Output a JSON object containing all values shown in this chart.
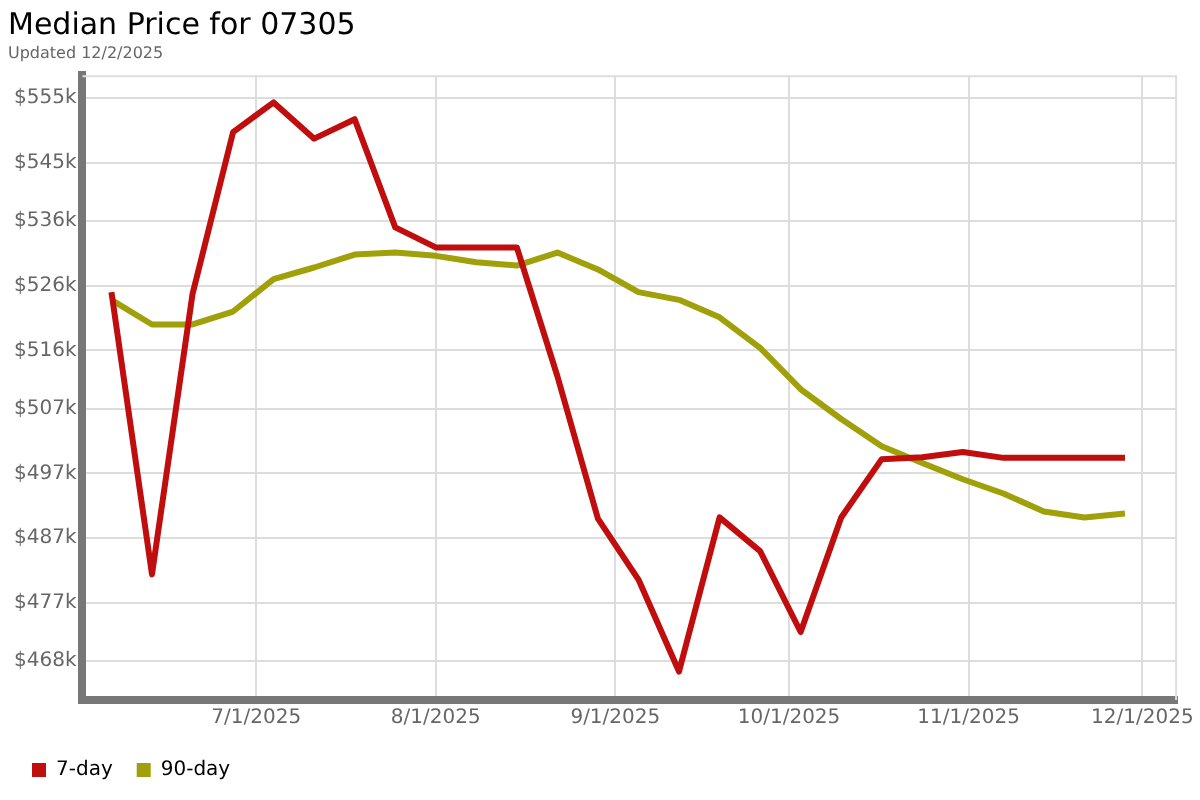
{
  "chart_data": {
    "type": "line",
    "title": "Median Price for 07305",
    "subtitle": "Updated 12/2/2025",
    "x": [
      "2025-06-06",
      "2025-06-13",
      "2025-06-20",
      "2025-06-27",
      "2025-07-04",
      "2025-07-11",
      "2025-07-18",
      "2025-07-25",
      "2025-08-01",
      "2025-08-08",
      "2025-08-15",
      "2025-08-22",
      "2025-08-29",
      "2025-09-05",
      "2025-09-12",
      "2025-09-19",
      "2025-09-26",
      "2025-10-03",
      "2025-10-10",
      "2025-10-17",
      "2025-10-24",
      "2025-10-31",
      "2025-11-07",
      "2025-11-14",
      "2025-11-21",
      "2025-11-28"
    ],
    "series": [
      {
        "name": "7-day",
        "color": "#c00d0d",
        "values": [
          525,
          481.4,
          524.7,
          549.7,
          554.3,
          548.7,
          551.7,
          535,
          531.9,
          531.9,
          531.9,
          512,
          490,
          480.6,
          466.4,
          490.2,
          485,
          472.5,
          490.2,
          499.2,
          499.5,
          500.3,
          499.4,
          499.4,
          499.4,
          499.4
        ]
      },
      {
        "name": "90-day",
        "color": "#a0a00a",
        "values": [
          523.8,
          520,
          520,
          522,
          527,
          528.8,
          530.8,
          531.1,
          530.6,
          529.6,
          529.1,
          531.1,
          528.5,
          525,
          523.8,
          521.1,
          516.4,
          510,
          505.4,
          501.2,
          498.6,
          496.1,
          493.9,
          491.1,
          490.2,
          490.8
        ]
      }
    ],
    "xlim": [
      "2025-06-01",
      "2025-12-07"
    ],
    "xticks": [
      {
        "value": "2025-07-01",
        "label": "7/1/2025"
      },
      {
        "value": "2025-08-01",
        "label": "8/1/2025"
      },
      {
        "value": "2025-09-01",
        "label": "9/1/2025"
      },
      {
        "value": "2025-10-01",
        "label": "10/1/2025"
      },
      {
        "value": "2025-11-01",
        "label": "11/1/2025"
      },
      {
        "value": "2025-12-01",
        "label": "12/1/2025"
      }
    ],
    "ylim": [
      462,
      558.5
    ],
    "yticks": [
      {
        "value": 468,
        "label": "$468k"
      },
      {
        "value": 477,
        "label": "$477k"
      },
      {
        "value": 487,
        "label": "$487k"
      },
      {
        "value": 497,
        "label": "$497k"
      },
      {
        "value": 507,
        "label": "$507k"
      },
      {
        "value": 516,
        "label": "$516k"
      },
      {
        "value": 526,
        "label": "$526k"
      },
      {
        "value": 536,
        "label": "$536k"
      },
      {
        "value": 545,
        "label": "$545k"
      },
      {
        "value": 555,
        "label": "$555k"
      }
    ],
    "grid": true,
    "legend": "bottom left",
    "marker": "none",
    "line_style": "solid"
  }
}
